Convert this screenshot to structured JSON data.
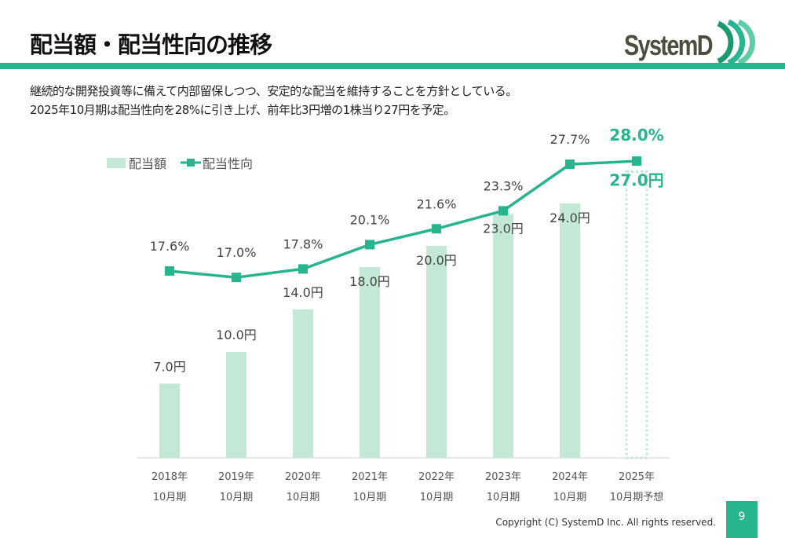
{
  "header": {
    "title": "配当額・配当性向の推移",
    "logo_text": "SystemD"
  },
  "description": [
    "継続的な開発投資等に備えて内部留保しつつ、安定的な配当を維持することを方針としている。",
    "2025年10月期は配当性向を28%に引き上げ、前年比3円増の1株当り27円を予定。"
  ],
  "chart_data": {
    "type": "bar+line",
    "categories": [
      [
        "2018年",
        "10月期"
      ],
      [
        "2019年",
        "10月期"
      ],
      [
        "2020年",
        "10月期"
      ],
      [
        "2021年",
        "10月期"
      ],
      [
        "2022年",
        "10月期"
      ],
      [
        "2023年",
        "10月期"
      ],
      [
        "2024年",
        "10月期"
      ],
      [
        "2025年",
        "10月期予想"
      ]
    ],
    "series": [
      {
        "name": "配当額",
        "type": "bar",
        "unit": "円",
        "values": [
          7.0,
          10.0,
          14.0,
          18.0,
          20.0,
          23.0,
          24.0,
          27.0
        ],
        "labels": [
          "7.0円",
          "10.0円",
          "14.0円",
          "18.0円",
          "20.0円",
          "23.0円",
          "24.0円",
          "27.0円"
        ],
        "forecast_last": true
      },
      {
        "name": "配当性向",
        "type": "line",
        "unit": "%",
        "values": [
          17.6,
          17.0,
          17.8,
          20.1,
          21.6,
          23.3,
          27.7,
          28.0
        ],
        "labels": [
          "17.6%",
          "17.0%",
          "17.8%",
          "20.1%",
          "21.6%",
          "23.3%",
          "27.7%",
          "28.0%"
        ]
      }
    ],
    "legend": "top-left",
    "colors": {
      "bar": "#c3e8d6",
      "line": "#27b48e",
      "highlight": "#27b48e"
    }
  },
  "footer": {
    "copyright": "Copyright (C) SystemD Inc. All rights reserved.",
    "page": "9"
  }
}
